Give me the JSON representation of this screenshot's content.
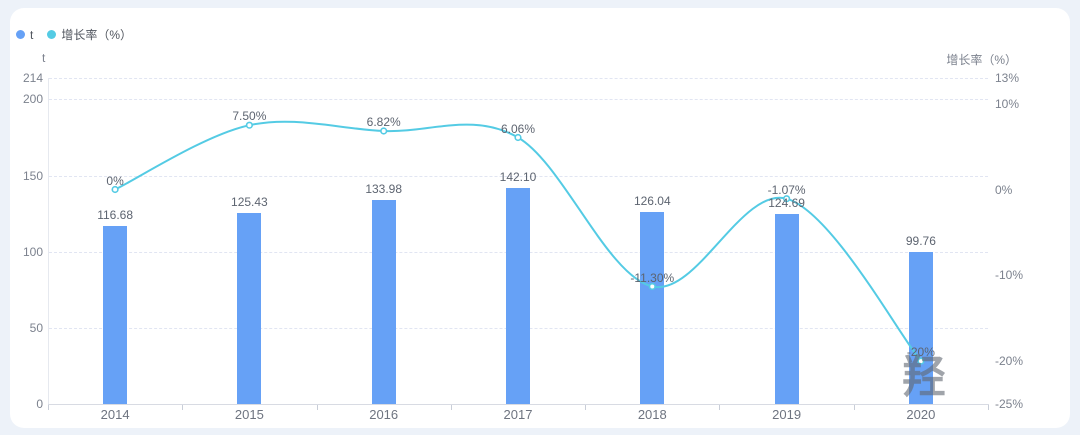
{
  "page": {
    "background": "#EDF2F9",
    "card_background": "#FFFFFF"
  },
  "chart_data": {
    "type": "bar+line combo",
    "categories": [
      "2014",
      "2015",
      "2016",
      "2017",
      "2018",
      "2019",
      "2020"
    ],
    "series": [
      {
        "name": "t",
        "type": "bar",
        "axis": "left",
        "color": "#66A1F6",
        "values": [
          116.68,
          125.43,
          133.98,
          142.1,
          126.04,
          124.69,
          99.76
        ],
        "labels": [
          "116.68",
          "125.43",
          "133.98",
          "142.10",
          "126.04",
          "124.69",
          "99.76"
        ]
      },
      {
        "name": "增长率（%）",
        "type": "line",
        "axis": "right",
        "color": "#54CBE4",
        "smooth": true,
        "values": [
          0,
          7.5,
          6.82,
          6.06,
          -11.3,
          -1.07,
          -20
        ],
        "labels": [
          "0%",
          "7.50%",
          "6.82%",
          "6.06%",
          "-11.30%",
          "-1.07%",
          "-20%"
        ]
      }
    ],
    "left_axis": {
      "title": "t",
      "range": [
        0,
        214
      ],
      "ticks": [
        {
          "value": 214,
          "label": "214"
        },
        {
          "value": 200,
          "label": "200"
        },
        {
          "value": 150,
          "label": "150"
        },
        {
          "value": 100,
          "label": "100"
        },
        {
          "value": 50,
          "label": "50"
        },
        {
          "value": 0,
          "label": "0"
        }
      ]
    },
    "right_axis": {
      "title": "增长率（%）",
      "range": [
        -25,
        13
      ],
      "ticks": [
        {
          "value": 13,
          "label": "13%"
        },
        {
          "value": 10,
          "label": "10%"
        },
        {
          "value": 0,
          "label": "0%"
        },
        {
          "value": -10,
          "label": "-10%"
        },
        {
          "value": -20,
          "label": "-20%"
        },
        {
          "value": -25,
          "label": "-25%"
        }
      ]
    },
    "grid": "horizontal dashed",
    "legend_position": "top-left"
  },
  "watermark": {
    "text": "羟",
    "color": "rgba(96,104,114,0.6)"
  }
}
